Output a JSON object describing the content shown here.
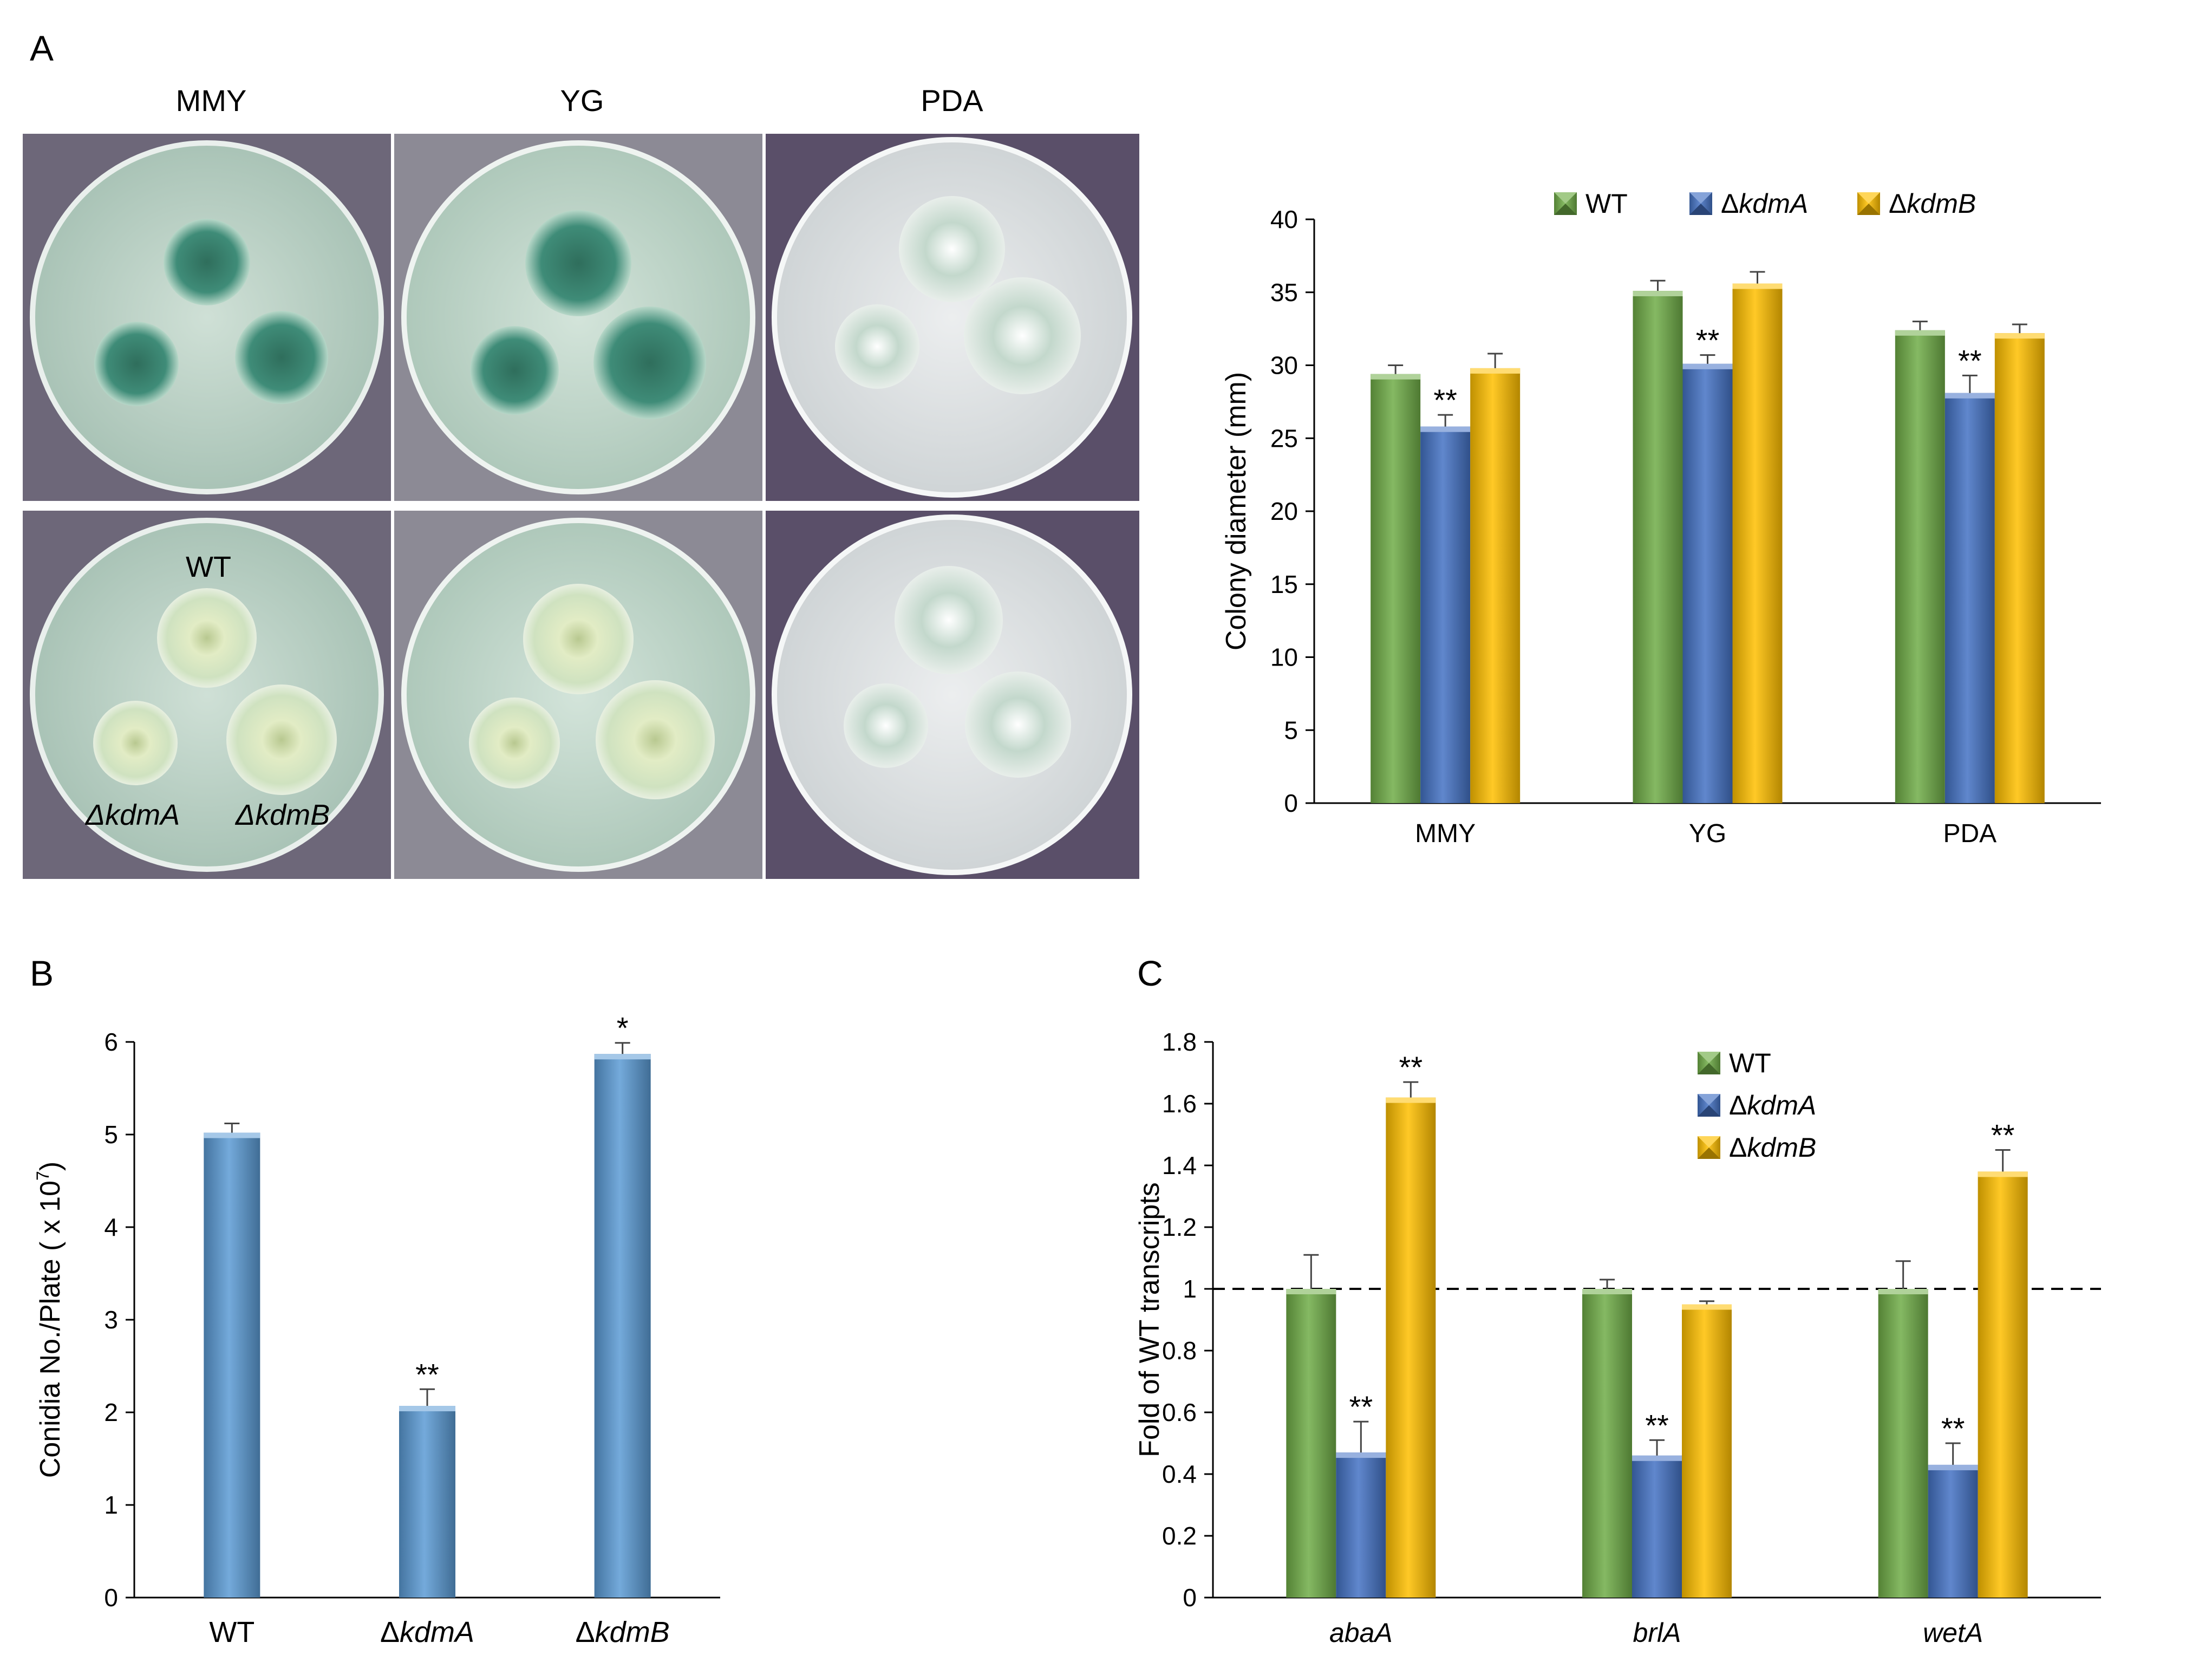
{
  "panel_labels": {
    "a": "A",
    "b": "B",
    "c": "C"
  },
  "plates": {
    "media": [
      "MMY",
      "YG",
      "PDA"
    ],
    "strain_labels": {
      "wt": "WT",
      "kdmA": "ΔkdmA",
      "kdmB": "ΔkdmB"
    },
    "colors": {
      "mmy_bg": "#bcd1c6",
      "yg_bg": "#c4d8cd",
      "pda_bg": "#dfe3e4",
      "purple": "#5a4f69",
      "teal_colony": "#3f8c78"
    }
  },
  "chart_data": [
    {
      "id": "A",
      "type": "bar",
      "title": "",
      "xlabel": "",
      "ylabel": "Colony diameter (mm)",
      "ylim": [
        0,
        40
      ],
      "yticks": [
        0,
        5,
        10,
        15,
        20,
        25,
        30,
        35,
        40
      ],
      "categories": [
        "MMY",
        "YG",
        "PDA"
      ],
      "series": [
        {
          "name": "WT",
          "color": "#70ad47",
          "values": [
            29.4,
            35.1,
            32.4
          ],
          "errors": [
            0.6,
            0.7,
            0.6
          ]
        },
        {
          "name": "ΔkdmA",
          "color": "#4472c4",
          "values": [
            25.8,
            30.1,
            28.1
          ],
          "errors": [
            0.8,
            0.6,
            1.2
          ]
        },
        {
          "name": "ΔkdmB",
          "color": "#ffc000",
          "values": [
            29.8,
            35.6,
            32.2
          ],
          "errors": [
            1.0,
            0.8,
            0.6
          ]
        }
      ],
      "annotations": [
        {
          "series": 1,
          "category": 0,
          "text": "**"
        },
        {
          "series": 1,
          "category": 1,
          "text": "**"
        },
        {
          "series": 1,
          "category": 2,
          "text": "**"
        }
      ],
      "grid": false,
      "legend": "top"
    },
    {
      "id": "B",
      "type": "bar",
      "title": "",
      "xlabel": "",
      "ylabel": "Conidia No./Plate ( x 10",
      "ylabel_sup": "7",
      "ylabel_end": ")",
      "ylim": [
        0,
        6
      ],
      "yticks": [
        0,
        1,
        2,
        3,
        4,
        5,
        6
      ],
      "categories": [
        "WT",
        "ΔkdmA",
        "ΔkdmB"
      ],
      "series": [
        {
          "name": "",
          "color": "#5b9bd5",
          "values": [
            5.02,
            2.07,
            5.87
          ],
          "errors": [
            0.1,
            0.18,
            0.12
          ]
        }
      ],
      "annotations": [
        {
          "series": 0,
          "category": 1,
          "text": "**"
        },
        {
          "series": 0,
          "category": 2,
          "text": "*"
        }
      ],
      "grid": false,
      "legend": "none"
    },
    {
      "id": "C",
      "type": "bar",
      "title": "",
      "xlabel": "",
      "ylabel": "Fold of WT transcripts",
      "ylim": [
        0,
        1.8
      ],
      "yticks": [
        "0",
        "0.2",
        "0.4",
        "0.6",
        "0.8",
        "1",
        "1.2",
        "1.4",
        "1.6",
        "1.8"
      ],
      "categories": [
        "abaA",
        "brlA",
        "wetA"
      ],
      "series": [
        {
          "name": "WT",
          "color": "#70ad47",
          "values": [
            1.0,
            1.0,
            1.0
          ],
          "errors": [
            0.11,
            0.03,
            0.09
          ]
        },
        {
          "name": "ΔkdmA",
          "color": "#4472c4",
          "values": [
            0.47,
            0.46,
            0.43
          ],
          "errors": [
            0.1,
            0.05,
            0.07
          ]
        },
        {
          "name": "ΔkdmB",
          "color": "#ffc000",
          "values": [
            1.62,
            0.95,
            1.38
          ],
          "errors": [
            0.05,
            0.01,
            0.07
          ]
        }
      ],
      "annotations": [
        {
          "series": 1,
          "category": 0,
          "text": "**"
        },
        {
          "series": 2,
          "category": 0,
          "text": "**"
        },
        {
          "series": 1,
          "category": 1,
          "text": "**"
        },
        {
          "series": 1,
          "category": 2,
          "text": "**"
        },
        {
          "series": 2,
          "category": 2,
          "text": "**"
        }
      ],
      "reference_line": 1,
      "grid": false,
      "legend": "right"
    }
  ]
}
